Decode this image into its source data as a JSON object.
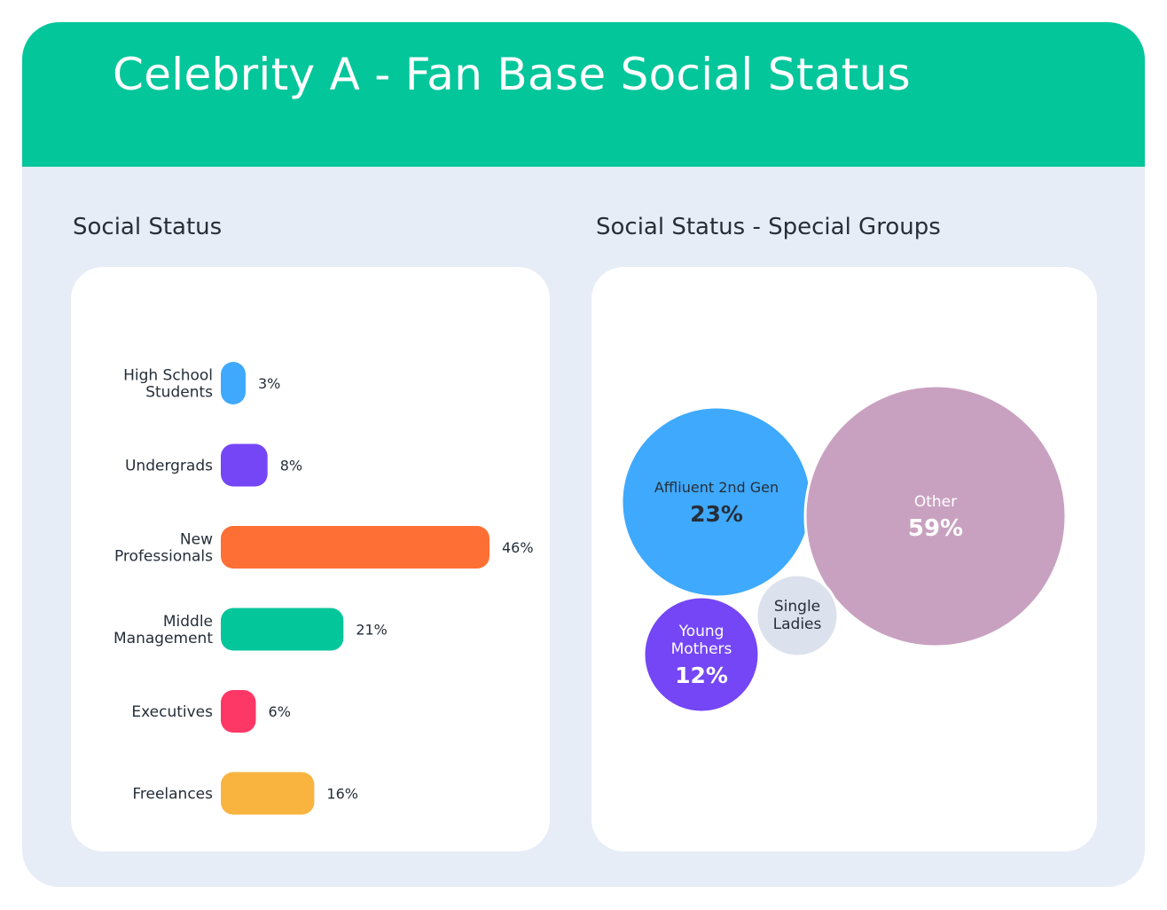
{
  "title": "Celebrity A - Fan Base Social Status",
  "left_section_title": "Social Status",
  "right_section_title": "Social Status - Special Groups",
  "colors": {
    "header": "#03c69b",
    "background": "#e6edf6",
    "panel": "#ffffff",
    "text": "#252e39"
  },
  "chart_data": [
    {
      "type": "bar",
      "orientation": "horizontal",
      "title": "Social Status",
      "categories": [
        "High School Students",
        "Undergrads",
        "New Professionals",
        "Middle Management",
        "Executives",
        "Freelances"
      ],
      "category_lines": [
        [
          "High School",
          "Students"
        ],
        [
          "Undergrads"
        ],
        [
          "New",
          "Professionals"
        ],
        [
          "Middle",
          "Management"
        ],
        [
          "Executives"
        ],
        [
          "Freelances"
        ]
      ],
      "values": [
        3,
        8,
        46,
        21,
        6,
        16
      ],
      "value_labels": [
        "3%",
        "8%",
        "46%",
        "21%",
        "6%",
        "16%"
      ],
      "colors": [
        "#3fa9fd",
        "#7446f6",
        "#fd6f35",
        "#03c69b",
        "#fe3866",
        "#f9b440"
      ]
    },
    {
      "type": "bubble",
      "title": "Social Status - Special Groups",
      "bubbles": [
        {
          "name_lines": [
            "Affliuent 2nd Gen"
          ],
          "value": 23,
          "label": "23%",
          "color": "#3fa9fd",
          "text_color": "#252e39"
        },
        {
          "name_lines": [
            "Other"
          ],
          "value": 59,
          "label": "59%",
          "color": "#c9a1c0",
          "text_color": "#ffffff"
        },
        {
          "name_lines": [
            "Young",
            "Mothers"
          ],
          "value": 12,
          "label": "12%",
          "color": "#7446f6",
          "text_color": "#ffffff"
        },
        {
          "name_lines": [
            "Single",
            "Ladies"
          ],
          "value": null,
          "label": "",
          "color": "#dbe2ee",
          "text_color": "#252e39"
        }
      ]
    }
  ]
}
